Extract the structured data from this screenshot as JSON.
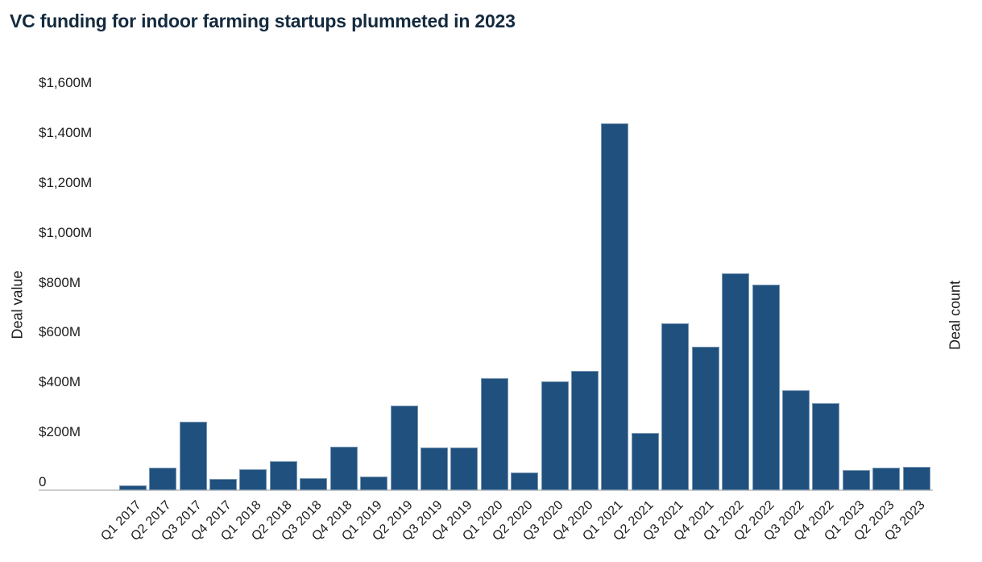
{
  "title": "VC funding for indoor farming startups plummeted in 2023",
  "axes": {
    "left_title": "Deal value",
    "right_title": "Deal count",
    "y_tick_labels": [
      "$1,600M",
      "$1,400M",
      "$1,200M",
      "$1,000M",
      "$800M",
      "$600M",
      "$400M",
      "$200M",
      "0"
    ]
  },
  "colors": {
    "bar": "#20517E",
    "title_text": "#142A3E",
    "axis_text": "#1C1C1C",
    "axis_line": "#CBCBCB",
    "background": "#FFFFFF"
  },
  "chart_data": {
    "type": "bar",
    "title": "VC funding for indoor farming startups plummeted in 2023",
    "xlabel": "",
    "ylabel": "Deal value",
    "y2label": "Deal count",
    "unit": "USD millions",
    "ylim": [
      0,
      1600
    ],
    "y_tick_step": 200,
    "grid": false,
    "legend": false,
    "categories": [
      "Q1 2017",
      "Q2 2017",
      "Q3 2017",
      "Q4 2017",
      "Q1 2018",
      "Q2 2018",
      "Q3 2018",
      "Q4 2018",
      "Q1 2019",
      "Q2 2019",
      "Q3 2019",
      "Q4 2019",
      "Q1 2020",
      "Q2 2020",
      "Q3 2020",
      "Q4 2020",
      "Q1 2021",
      "Q2 2021",
      "Q3 2021",
      "Q4 2021",
      "Q1 2022",
      "Q2 2022",
      "Q3 2022",
      "Q4 2022",
      "Q1 2023",
      "Q2 2023",
      "Q3 2023"
    ],
    "values": [
      20,
      90,
      275,
      45,
      85,
      115,
      50,
      175,
      55,
      340,
      170,
      170,
      450,
      70,
      435,
      480,
      1470,
      230,
      670,
      575,
      870,
      825,
      400,
      350,
      80,
      90,
      95
    ]
  }
}
